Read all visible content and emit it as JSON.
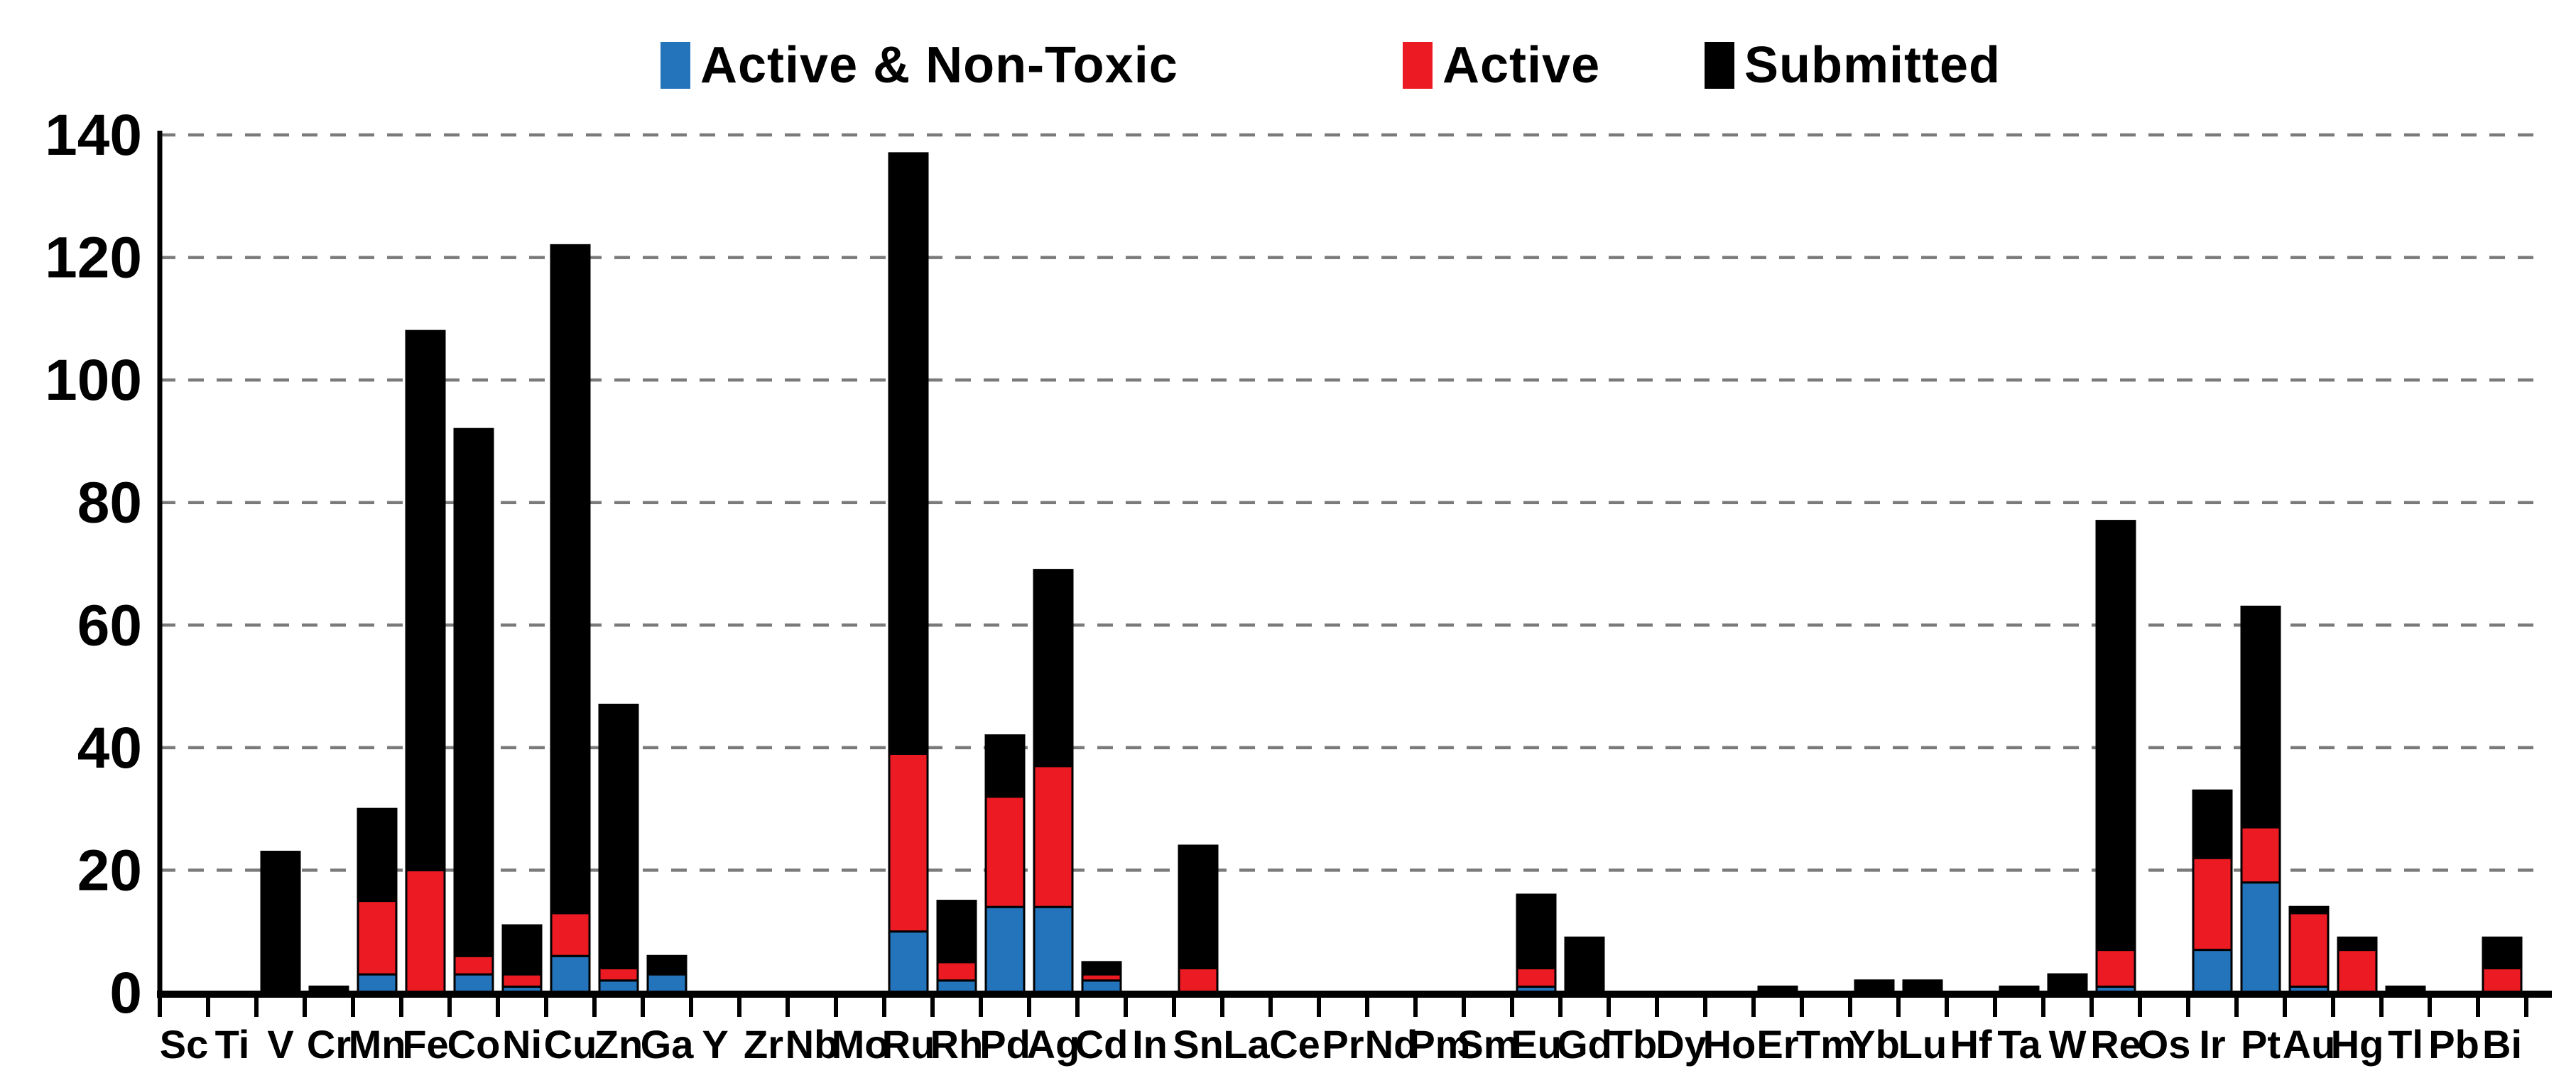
{
  "chart_data": {
    "type": "bar",
    "stacked": true,
    "stacking_note": "nested cumulative subsets: Active & Non-Toxic ⊆ Active ⊆ Submitted; values listed are cumulative bar heights read off the axis",
    "title": "",
    "xlabel": "",
    "ylabel": "",
    "ylim": [
      0,
      140
    ],
    "yticks": [
      0,
      20,
      40,
      60,
      80,
      100,
      120,
      140
    ],
    "grid": "dashed horizontal",
    "legend_position": "top",
    "categories": [
      "Sc",
      "Ti",
      "V",
      "Cr",
      "Mn",
      "Fe",
      "Co",
      "Ni",
      "Cu",
      "Zn",
      "Ga",
      "Y",
      "Zr",
      "Nb",
      "Mo",
      "Ru",
      "Rh",
      "Pd",
      "Ag",
      "Cd",
      "In",
      "Sn",
      "La",
      "Ce",
      "Pr",
      "Nd",
      "Pm",
      "Sm",
      "Eu",
      "Gd",
      "Tb",
      "Dy",
      "Ho",
      "Er",
      "Tm",
      "Yb",
      "Lu",
      "Hf",
      "Ta",
      "W",
      "Re",
      "Os",
      "Ir",
      "Pt",
      "Au",
      "Hg",
      "Tl",
      "Pb",
      "Bi"
    ],
    "series": [
      {
        "name": "Active & Non-Toxic",
        "color": "#2374bb",
        "values": [
          0,
          0,
          0,
          0,
          3,
          0,
          3,
          1,
          6,
          2,
          3,
          0,
          0,
          0,
          0,
          10,
          2,
          14,
          14,
          2,
          0,
          0,
          0,
          0,
          0,
          0,
          0,
          0,
          1,
          0,
          0,
          0,
          0,
          0,
          0,
          0,
          0,
          0,
          0,
          0,
          1,
          0,
          7,
          18,
          1,
          0,
          0,
          0,
          0
        ]
      },
      {
        "name": "Active",
        "color": "#ec1b23",
        "values": [
          0,
          0,
          0,
          0,
          15,
          20,
          6,
          3,
          13,
          4,
          3,
          0,
          0,
          0,
          0,
          39,
          5,
          32,
          37,
          3,
          0,
          4,
          0,
          0,
          0,
          0,
          0,
          0,
          4,
          0,
          0,
          0,
          0,
          0,
          0,
          0,
          0,
          0,
          0,
          0,
          7,
          0,
          22,
          27,
          13,
          7,
          0,
          0,
          4
        ]
      },
      {
        "name": "Submitted",
        "color": "#000000",
        "values": [
          0,
          0,
          23,
          1,
          30,
          108,
          92,
          11,
          122,
          47,
          6,
          0,
          0,
          0,
          0,
          137,
          15,
          42,
          69,
          5,
          0,
          24,
          0,
          0,
          0,
          0,
          0,
          0,
          16,
          9,
          0,
          0,
          0,
          1,
          0,
          2,
          2,
          0,
          1,
          3,
          77,
          0,
          33,
          63,
          14,
          9,
          1,
          0,
          9
        ]
      }
    ]
  }
}
